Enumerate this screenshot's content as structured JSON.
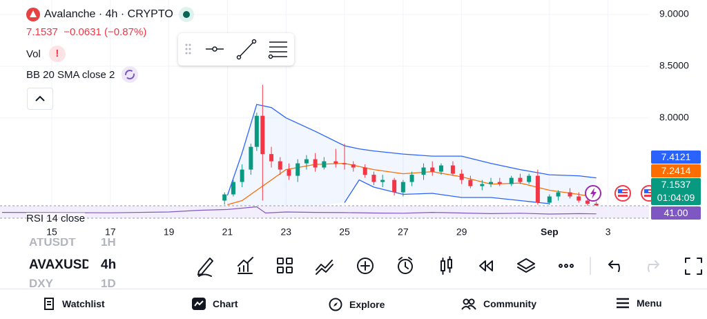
{
  "header": {
    "symbol_title": "Avalanche · 4h · CRYPTO",
    "price": "7.1537",
    "change": "−0.0631 (−0.87%)",
    "vol_label": "Vol",
    "bb_label": "BB 20 SMA close 2",
    "rsi_label": "RSI 14 close"
  },
  "chart_data": {
    "type": "candlestick",
    "x": [
      20.9,
      21.2,
      21.5,
      21.8,
      22.0,
      22.2,
      22.5,
      22.8,
      23.1,
      23.4,
      23.7,
      24.0,
      24.3,
      24.7,
      25.0,
      25.3,
      25.7,
      26.0,
      26.3,
      26.7,
      27.0,
      27.3,
      27.7,
      28.0,
      28.3,
      28.7,
      29.0,
      29.3,
      29.7,
      30.0,
      30.3,
      30.7,
      31.0,
      31.3,
      31.6,
      32.0,
      32.3,
      32.7,
      33.0,
      33.3,
      33.6
    ],
    "open": [
      7.2,
      7.26,
      7.38,
      7.5,
      7.72,
      8.02,
      7.65,
      7.58,
      7.5,
      7.44,
      7.56,
      7.6,
      7.52,
      7.58,
      7.56,
      7.55,
      7.52,
      7.45,
      7.38,
      7.4,
      7.28,
      7.38,
      7.45,
      7.52,
      7.48,
      7.54,
      7.46,
      7.4,
      7.34,
      7.36,
      7.38,
      7.36,
      7.42,
      7.38,
      7.44,
      7.18,
      7.24,
      7.28,
      7.24,
      7.2,
      7.17
    ],
    "high": [
      7.28,
      7.4,
      7.55,
      7.75,
      8.05,
      8.32,
      7.72,
      7.62,
      7.56,
      7.6,
      7.64,
      7.66,
      7.62,
      7.7,
      7.75,
      7.58,
      7.55,
      7.48,
      7.45,
      7.42,
      7.4,
      7.48,
      7.56,
      7.58,
      7.56,
      7.58,
      7.5,
      7.44,
      7.4,
      7.42,
      7.42,
      7.44,
      7.46,
      7.46,
      7.5,
      7.26,
      7.3,
      7.32,
      7.28,
      7.22,
      7.19
    ],
    "low": [
      7.16,
      7.24,
      7.33,
      7.45,
      7.68,
      7.2,
      7.52,
      7.45,
      7.4,
      7.38,
      7.5,
      7.48,
      7.5,
      7.52,
      7.5,
      7.48,
      7.42,
      7.35,
      7.33,
      7.25,
      7.24,
      7.34,
      7.4,
      7.44,
      7.45,
      7.44,
      7.36,
      7.32,
      7.3,
      7.33,
      7.34,
      7.34,
      7.36,
      7.36,
      7.16,
      7.16,
      7.2,
      7.22,
      7.18,
      7.15,
      7.15
    ],
    "close": [
      7.26,
      7.38,
      7.5,
      7.72,
      8.02,
      7.65,
      7.58,
      7.5,
      7.44,
      7.56,
      7.6,
      7.52,
      7.58,
      7.56,
      7.55,
      7.52,
      7.45,
      7.38,
      7.4,
      7.28,
      7.38,
      7.45,
      7.52,
      7.48,
      7.54,
      7.46,
      7.4,
      7.34,
      7.36,
      7.38,
      7.36,
      7.42,
      7.38,
      7.44,
      7.18,
      7.24,
      7.28,
      7.24,
      7.2,
      7.17,
      7.1537
    ],
    "up_color": "#089981",
    "down_color": "#f23645",
    "xlim": [
      13.23,
      35.4
    ],
    "xticks": [
      15,
      17,
      19,
      21,
      23,
      25,
      27,
      29,
      {
        "value": 32,
        "label": "Sep"
      },
      {
        "value": 34,
        "label": "3"
      }
    ],
    "ylim": [
      7.15,
      9.14
    ],
    "yticks": [
      {
        "value": 9,
        "label": "9.0000"
      },
      {
        "value": 8.5,
        "label": "8.5000"
      },
      {
        "value": 8,
        "label": "8.0000"
      }
    ],
    "grid": true,
    "bb": {
      "x": [
        21,
        21.5,
        22,
        22.5,
        23,
        24,
        25,
        25.5,
        26,
        27,
        28,
        29,
        30,
        31,
        32,
        33,
        33.6
      ],
      "upper": [
        7.25,
        7.66,
        8.13,
        8.1,
        8.0,
        7.87,
        7.73,
        7.7,
        7.68,
        7.65,
        7.63,
        7.63,
        7.56,
        7.5,
        7.45,
        7.44,
        7.42
      ],
      "middle": [
        7.16,
        7.2,
        7.3,
        7.4,
        7.5,
        7.55,
        7.56,
        7.53,
        7.5,
        7.46,
        7.48,
        7.43,
        7.36,
        7.37,
        7.3,
        7.26,
        7.23
      ],
      "lower": [
        null,
        null,
        null,
        null,
        null,
        null,
        7.18,
        7.4,
        7.33,
        7.26,
        7.27,
        7.23,
        7.23,
        7.2,
        7.17,
        null,
        null
      ],
      "band_color": "#2962ff",
      "basis_color": "#ff6d00"
    },
    "rsi": {
      "x": [
        13.3,
        15,
        17,
        19,
        20,
        21,
        22,
        22.3,
        23,
        24,
        25,
        26,
        27,
        28,
        29,
        30,
        31,
        32,
        33,
        33.6
      ],
      "values": [
        48,
        47,
        46,
        50,
        58,
        62,
        75,
        45,
        50,
        48,
        47,
        45,
        44,
        48,
        45,
        42,
        44,
        40,
        42,
        41
      ],
      "ylim": [
        20,
        80
      ],
      "color": "#7e57c2"
    }
  },
  "price_badges": [
    {
      "text": "7.4121",
      "color": "#2962ff"
    },
    {
      "text": "7.2414",
      "color": "#ff6d00"
    },
    {
      "text": "7.1537",
      "sub": "01:04:09",
      "color": "#089981"
    },
    {
      "text": "41.00",
      "color": "#7e57c2"
    }
  ],
  "toolbar": {
    "symbols": [
      "ATUSDT",
      "AVAXUSDT",
      "DXY"
    ],
    "intervals": [
      "1H",
      "4h",
      "1D"
    ]
  },
  "nav": [
    "Watchlist",
    "Chart",
    "Explore",
    "Community",
    "Menu"
  ]
}
